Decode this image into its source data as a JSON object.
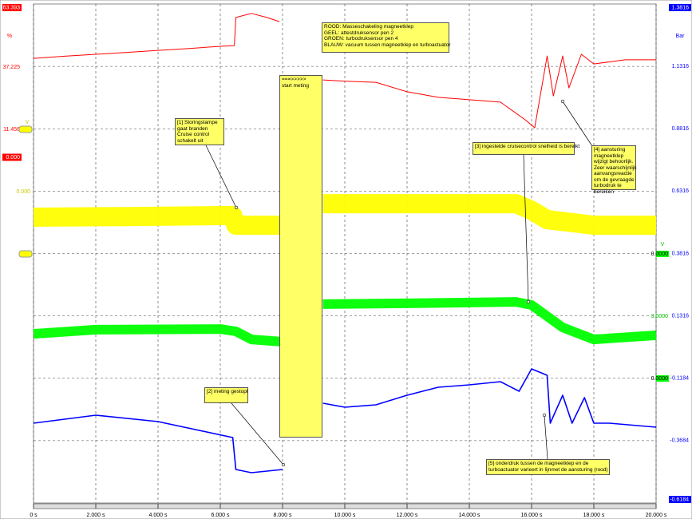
{
  "chart_data": {
    "type": "line",
    "xlim": [
      0,
      20
    ],
    "xticks": [
      {
        "value": 0,
        "label": "0 s"
      },
      {
        "value": 2,
        "label": "2.000 s"
      },
      {
        "value": 4,
        "label": "4.000 s"
      },
      {
        "value": 6,
        "label": "6.000 s"
      },
      {
        "value": 8,
        "label": "8.000 s"
      },
      {
        "value": 10,
        "label": "10.000 s"
      },
      {
        "value": 12,
        "label": "12.000 s"
      },
      {
        "value": 14,
        "label": "14.000 s"
      },
      {
        "value": 16,
        "label": "16.000 s"
      },
      {
        "value": 18,
        "label": "18.000 s"
      },
      {
        "value": 20,
        "label": "20.000 s"
      }
    ],
    "ylabel": "Bar",
    "ylim": [
      -0.6184,
      1.3816
    ],
    "yticks": [
      -0.6184,
      -0.3684,
      -0.1184,
      0.1316,
      0.3816,
      0.6316,
      0.8816,
      1.1316,
      1.3816
    ],
    "y2label": "%",
    "y2lim": [
      -142.97,
      63.393
    ],
    "y2ticks": [
      {
        "value": 0,
        "label": "0.000"
      },
      11.456,
      37.225,
      63.393
    ],
    "grid": true,
    "series": [
      {
        "name": "ROOD",
        "color": "#ff0000",
        "axis": "y2",
        "x": [
          0,
          1,
          2,
          3,
          4,
          5,
          6,
          6.45,
          6.5,
          7,
          7.5,
          7.9,
          8.3,
          9.3,
          10,
          11,
          12,
          13,
          14,
          15,
          15.8,
          16.1,
          16.5,
          16.7,
          17,
          17.2,
          17.6,
          18,
          19,
          20
        ],
        "values": [
          40.9,
          41.8,
          42.6,
          43.4,
          44.2,
          45.0,
          45.9,
          46.2,
          57.8,
          59.5,
          57.8,
          56.1,
          null,
          32.0,
          31.5,
          31.0,
          27.1,
          24.8,
          23.8,
          22.8,
          15.5,
          12.2,
          41.9,
          25.4,
          41.9,
          28.7,
          42.6,
          38.6,
          40.3,
          40.3
        ]
      },
      {
        "name": "GEEL",
        "color": "#ffff00",
        "ylabel": "V",
        "ylim": [
          -15.0,
          9.04
        ],
        "yticks": [
          {
            "value": 0,
            "label": "0.000"
          }
        ],
        "x": [
          0,
          3,
          6.4,
          6.5,
          8,
          8.3,
          9.3,
          12,
          15.5,
          16,
          16.5,
          18,
          20
        ],
        "values": [
          -1.23,
          -1.2,
          -1.15,
          -1.62,
          -1.62,
          null,
          -0.58,
          -0.58,
          -0.58,
          -0.9,
          -1.35,
          -1.62,
          -1.62
        ]
      },
      {
        "name": "GROEN",
        "color": "#00ff00",
        "ylabel": "V",
        "ylim": [
          -6.0,
          18.04
        ],
        "yticks": [
          {
            "value": 0,
            "label": "0.0000"
          },
          {
            "value": 3,
            "label": "3.0000"
          }
        ],
        "marker_label": "0.0000",
        "x": [
          0,
          2,
          6,
          6.5,
          7,
          8,
          8.3,
          9.3,
          12,
          15.5,
          16,
          17,
          18,
          20
        ],
        "values": [
          2.15,
          2.35,
          2.38,
          2.27,
          1.88,
          1.77,
          null,
          3.58,
          3.62,
          3.69,
          3.54,
          2.46,
          1.88,
          2.08
        ]
      },
      {
        "name": "BLAUW",
        "color": "#0000ff",
        "x": [
          0,
          2,
          4,
          6.4,
          6.5,
          7,
          8,
          8.3,
          9.3,
          10,
          11,
          12,
          13,
          14,
          15,
          15.6,
          16,
          16.5,
          16.6,
          17,
          17.3,
          17.7,
          18,
          18.5,
          20
        ],
        "values": [
          -0.2984,
          -0.2664,
          -0.292,
          -0.356,
          -0.484,
          -0.4968,
          -0.484,
          null,
          -0.2184,
          -0.2344,
          -0.2248,
          -0.1864,
          -0.1544,
          -0.1448,
          -0.132,
          -0.1704,
          -0.0808,
          -0.1064,
          -0.2984,
          -0.1864,
          -0.2984,
          -0.196,
          -0.2984,
          -0.2984,
          -0.3144
        ]
      }
    ],
    "annotations": [
      {
        "lines": [
          "ROOD: Masseschakeling magneetklep",
          "GEEL: attestdruksensor pen 2",
          "GROEN: turbodruksensor pen 4",
          "BLAUW: vacuum tussen magneetklep en turboactuator"
        ]
      },
      {
        "lines": [
          "===>>>>>",
          "start meting"
        ]
      },
      {
        "lines": [
          "[1] Storingslampe",
          "gaat branden",
          "Cruise control",
          "schakelt uit"
        ]
      },
      {
        "lines": [
          "[2] meting gestopt"
        ]
      },
      {
        "lines": [
          "[3] ingestelde cruisecontrol snelheid is bereikt"
        ]
      },
      {
        "lines": [
          "[4] aansturing",
          "magneetklep",
          "wijzigt behoorlijk.",
          "Zeer waarschijnlijk",
          "aanvangsreactie",
          "om de gevraagde",
          "turbodruk te",
          "bereiken"
        ]
      },
      {
        "lines": [
          "[5] onderdruk tussen de magneetklep en de",
          "turboactuator varieert in lijnmet de aansturing (rood)"
        ]
      }
    ]
  }
}
